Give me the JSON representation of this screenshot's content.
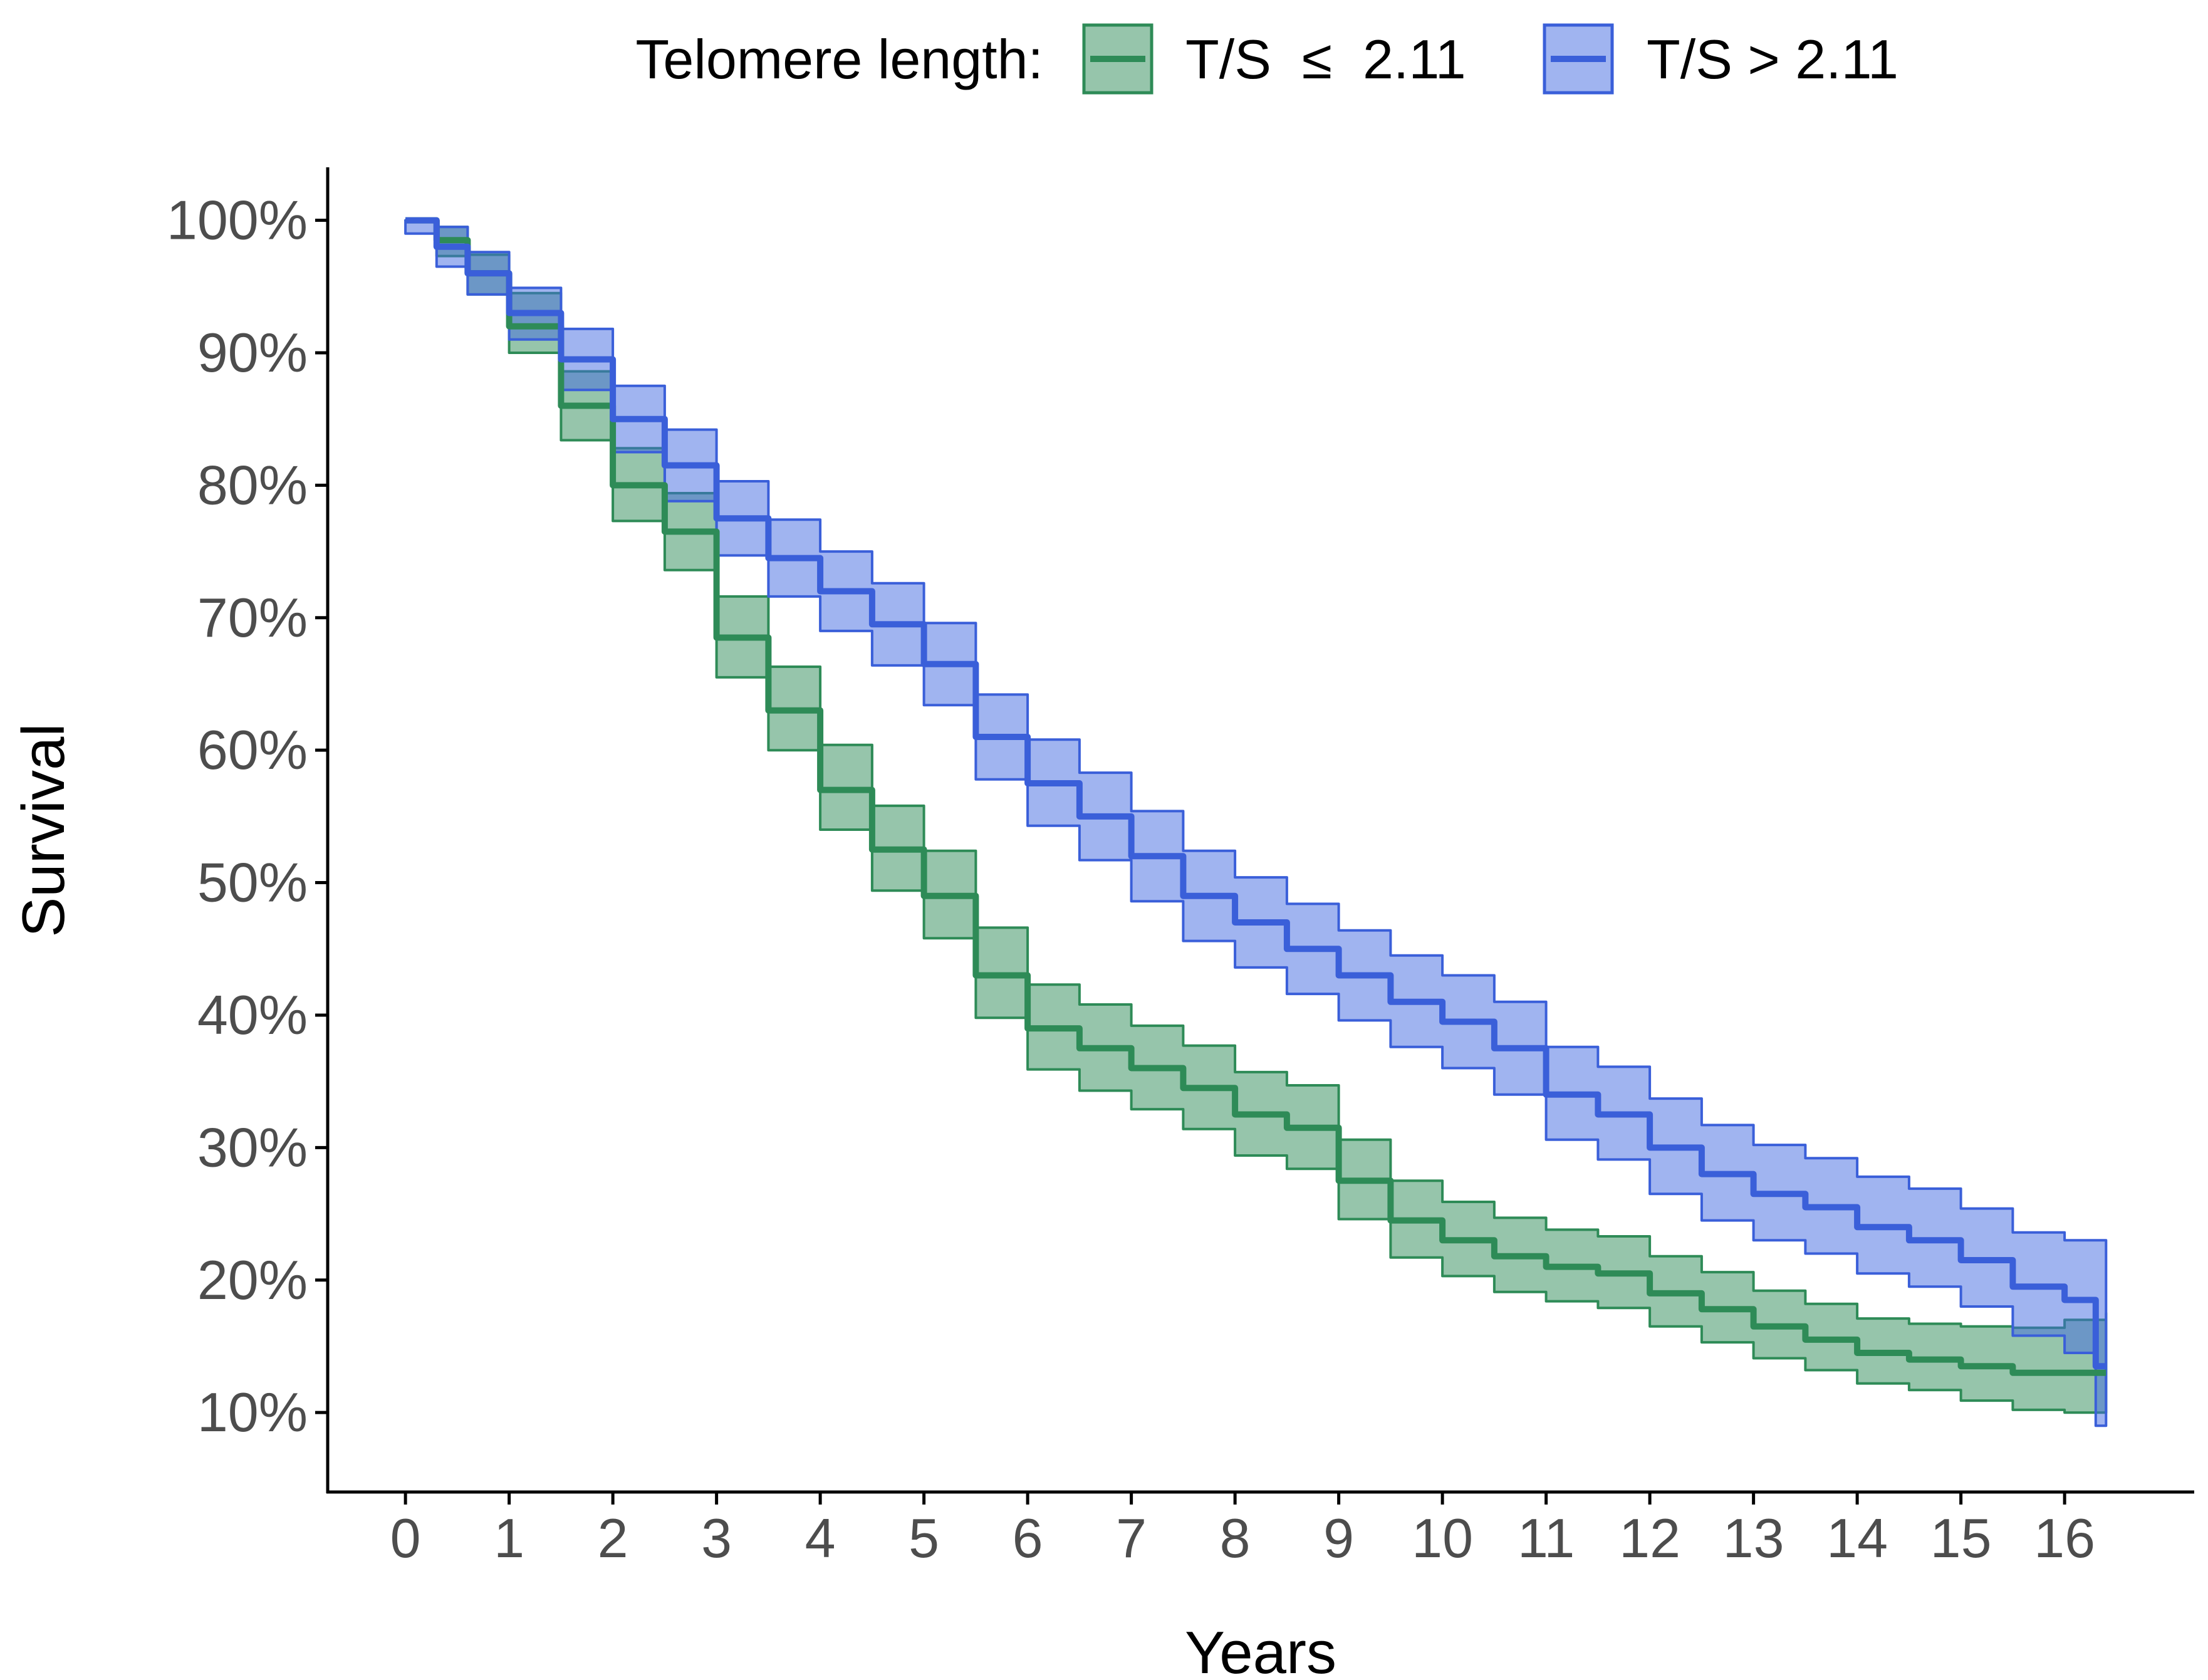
{
  "chart_data": {
    "type": "line",
    "subtype": "kaplan-meier survival with confidence bands",
    "title": "",
    "xlabel": "Years",
    "ylabel": "Survival",
    "xlim": [
      -0.75,
      17.25
    ],
    "ylim": [
      4,
      104
    ],
    "x_ticks": [
      0,
      1,
      2,
      3,
      4,
      5,
      6,
      7,
      8,
      9,
      10,
      11,
      12,
      13,
      14,
      15,
      16
    ],
    "x_tick_labels": [
      "0",
      "1",
      "2",
      "3",
      "4",
      "5",
      "6",
      "7",
      "8",
      "9",
      "10",
      "11",
      "12",
      "13",
      "14",
      "15",
      "16"
    ],
    "y_ticks": [
      10,
      20,
      30,
      40,
      50,
      60,
      70,
      80,
      90,
      100
    ],
    "y_tick_labels": [
      "10%",
      "20%",
      "30%",
      "40%",
      "50%",
      "60%",
      "70%",
      "80%",
      "90%",
      "100%"
    ],
    "grid": false,
    "legend": {
      "title": "Telomere length:",
      "placement": "top",
      "entries": [
        "T/S  ≤  2.11",
        "T/S > 2.11"
      ]
    },
    "series": [
      {
        "name": "T/S  ≤  2.11",
        "color": "#2E8B57",
        "fill": "#2E8B57",
        "fill_opacity": 0.5,
        "points": [
          [
            0,
            100,
            100,
            100
          ],
          [
            0.3,
            98.5,
            99.5,
            97.3
          ],
          [
            0.6,
            96,
            97.4,
            94.4
          ],
          [
            1,
            92,
            94.5,
            90
          ],
          [
            1.5,
            86,
            88.6,
            83.4
          ],
          [
            2,
            80,
            82.8,
            77.3
          ],
          [
            2.5,
            76.5,
            79.4,
            73.6
          ],
          [
            3,
            68.5,
            71.6,
            65.5
          ],
          [
            3.5,
            63,
            66.3,
            60
          ],
          [
            4,
            57,
            60.4,
            54
          ],
          [
            4.5,
            52.5,
            55.8,
            49.4
          ],
          [
            5,
            49,
            52.4,
            45.8
          ],
          [
            5.5,
            43,
            46.6,
            39.8
          ],
          [
            6,
            39,
            42.3,
            35.9
          ],
          [
            6.5,
            37.5,
            40.8,
            34.3
          ],
          [
            7,
            36,
            39.2,
            32.9
          ],
          [
            7.5,
            34.5,
            37.7,
            31.4
          ],
          [
            8,
            32.5,
            35.7,
            29.4
          ],
          [
            8.5,
            31.5,
            34.7,
            28.4
          ],
          [
            9,
            27.5,
            30.6,
            24.6
          ],
          [
            9.5,
            24.5,
            27.5,
            21.7
          ],
          [
            10,
            23,
            25.9,
            20.3
          ],
          [
            10.5,
            21.8,
            24.7,
            19.1
          ],
          [
            11,
            21,
            23.8,
            18.4
          ],
          [
            11.5,
            20.5,
            23.3,
            17.9
          ],
          [
            12,
            19,
            21.8,
            16.5
          ],
          [
            12.5,
            17.8,
            20.6,
            15.3
          ],
          [
            13,
            16.5,
            19.2,
            14.1
          ],
          [
            13.5,
            15.5,
            18.2,
            13.2
          ],
          [
            14,
            14.5,
            17.1,
            12.2
          ],
          [
            14.5,
            14,
            16.7,
            11.7
          ],
          [
            15,
            13.5,
            16.5,
            10.9
          ],
          [
            15.5,
            13,
            16.4,
            10.2
          ],
          [
            16,
            13,
            17,
            10
          ],
          [
            16.4,
            13,
            17.5,
            10
          ]
        ]
      },
      {
        "name": "T/S > 2.11",
        "color": "#3A5FD9",
        "fill": "#4169E1",
        "fill_opacity": 0.5,
        "points": [
          [
            0,
            100,
            100,
            99
          ],
          [
            0.3,
            98,
            99.5,
            96.5
          ],
          [
            0.6,
            96,
            97.6,
            94.4
          ],
          [
            1,
            93,
            94.9,
            91
          ],
          [
            1.5,
            89.5,
            91.8,
            87.2
          ],
          [
            2,
            85,
            87.5,
            82.5
          ],
          [
            2.5,
            81.5,
            84.2,
            78.8
          ],
          [
            3,
            77.5,
            80.3,
            74.7
          ],
          [
            3.5,
            74.5,
            77.4,
            71.6
          ],
          [
            4,
            72,
            75,
            69
          ],
          [
            4.5,
            69.5,
            72.6,
            66.4
          ],
          [
            5,
            66.5,
            69.6,
            63.4
          ],
          [
            5.5,
            61,
            64.2,
            57.8
          ],
          [
            6,
            57.5,
            60.8,
            54.3
          ],
          [
            6.5,
            55,
            58.3,
            51.7
          ],
          [
            7,
            52,
            55.4,
            48.6
          ],
          [
            7.5,
            49,
            52.4,
            45.6
          ],
          [
            8,
            47,
            50.4,
            43.6
          ],
          [
            8.5,
            45,
            48.4,
            41.6
          ],
          [
            9,
            43,
            46.4,
            39.6
          ],
          [
            9.5,
            41,
            44.5,
            37.6
          ],
          [
            10,
            39.5,
            43,
            36
          ],
          [
            10.5,
            37.5,
            41,
            34
          ],
          [
            11,
            34,
            37.6,
            30.6
          ],
          [
            11.5,
            32.5,
            36.1,
            29.1
          ],
          [
            12,
            30,
            33.7,
            26.5
          ],
          [
            12.5,
            28,
            31.7,
            24.5
          ],
          [
            13,
            26.5,
            30.2,
            23
          ],
          [
            13.5,
            25.5,
            29.2,
            22
          ],
          [
            14,
            24,
            27.8,
            20.5
          ],
          [
            14.5,
            23,
            26.9,
            19.5
          ],
          [
            15,
            21.5,
            25.4,
            18
          ],
          [
            15.5,
            19.5,
            23.6,
            15.8
          ],
          [
            16,
            18.5,
            23,
            14.5
          ],
          [
            16.3,
            13.5,
            23,
            9
          ],
          [
            16.4,
            13.5,
            23,
            9
          ]
        ]
      }
    ]
  }
}
